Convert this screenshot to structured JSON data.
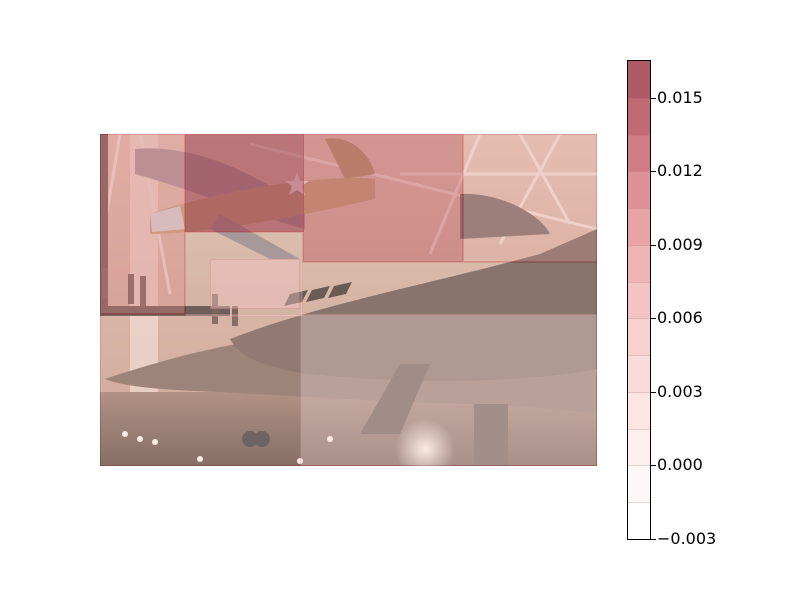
{
  "chart_data": {
    "type": "heatmap",
    "title": "",
    "background": "photo of aircraft museum hangar: a camouflaged propeller fighter plane with star roundel suspended above a dark delta-wing jet",
    "overlay_boxes": [
      {
        "id": "box-1",
        "value": 0.016
      },
      {
        "id": "box-2",
        "value": 0.012
      },
      {
        "id": "box-3",
        "value": 0.01
      },
      {
        "id": "box-4",
        "value": 0.008
      },
      {
        "id": "box-5",
        "value": 0.007
      },
      {
        "id": "box-6",
        "value": 0.004
      },
      {
        "id": "box-7",
        "value": 0.002
      },
      {
        "id": "box-8",
        "value": 0.001
      }
    ],
    "colorbar": {
      "vmin": -0.003,
      "vmax": 0.0165,
      "levels": [
        -0.003,
        -0.0015,
        0.0,
        0.0015,
        0.003,
        0.0045,
        0.006,
        0.0075,
        0.009,
        0.0105,
        0.012,
        0.0135,
        0.015,
        0.0165
      ],
      "band_colors": [
        "#ffffff",
        "#fdf8f7",
        "#fcefed",
        "#fbe6e3",
        "#f9dcd9",
        "#f7d1ce",
        "#f4c4c2",
        "#efb5b4",
        "#e8a4a5",
        "#de9196",
        "#d17d85",
        "#c06a74",
        "#ad5a66"
      ],
      "ticks": [
        -0.003,
        0.0,
        0.003,
        0.006,
        0.009,
        0.012,
        0.015
      ],
      "tick_labels": [
        "−0.003",
        "0.000",
        "0.003",
        "0.006",
        "0.009",
        "0.012",
        "0.015"
      ]
    }
  }
}
